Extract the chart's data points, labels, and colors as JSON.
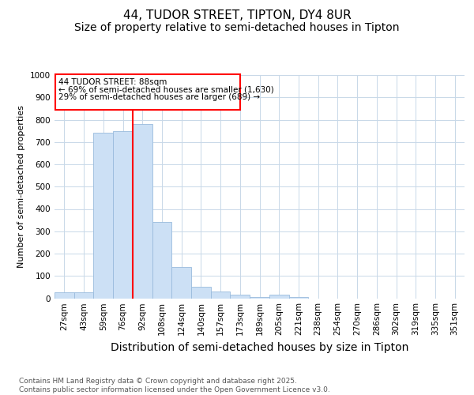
{
  "title": "44, TUDOR STREET, TIPTON, DY4 8UR",
  "subtitle": "Size of property relative to semi-detached houses in Tipton",
  "xlabel": "Distribution of semi-detached houses by size in Tipton",
  "ylabel": "Number of semi-detached properties",
  "categories": [
    "27sqm",
    "43sqm",
    "59sqm",
    "76sqm",
    "92sqm",
    "108sqm",
    "124sqm",
    "140sqm",
    "157sqm",
    "173sqm",
    "189sqm",
    "205sqm",
    "221sqm",
    "238sqm",
    "254sqm",
    "270sqm",
    "286sqm",
    "302sqm",
    "319sqm",
    "335sqm",
    "351sqm"
  ],
  "values": [
    25,
    25,
    740,
    750,
    780,
    340,
    140,
    50,
    30,
    15,
    5,
    15,
    5,
    0,
    0,
    0,
    0,
    0,
    0,
    0,
    0
  ],
  "bar_color": "#cce0f5",
  "bar_edgecolor": "#99bbdd",
  "redline_index": 4,
  "redline_label": "44 TUDOR STREET: 88sqm",
  "annotation_line1": "← 69% of semi-detached houses are smaller (1,630)",
  "annotation_line2": "29% of semi-detached houses are larger (689) →",
  "ylim": [
    0,
    1000
  ],
  "yticks": [
    0,
    100,
    200,
    300,
    400,
    500,
    600,
    700,
    800,
    900,
    1000
  ],
  "footnote": "Contains HM Land Registry data © Crown copyright and database right 2025.\nContains public sector information licensed under the Open Government Licence v3.0.",
  "background_color": "#ffffff",
  "grid_color": "#c8d8e8",
  "title_fontsize": 11,
  "subtitle_fontsize": 10,
  "ylabel_fontsize": 8,
  "xlabel_fontsize": 10,
  "tick_fontsize": 7.5,
  "footnote_fontsize": 6.5
}
